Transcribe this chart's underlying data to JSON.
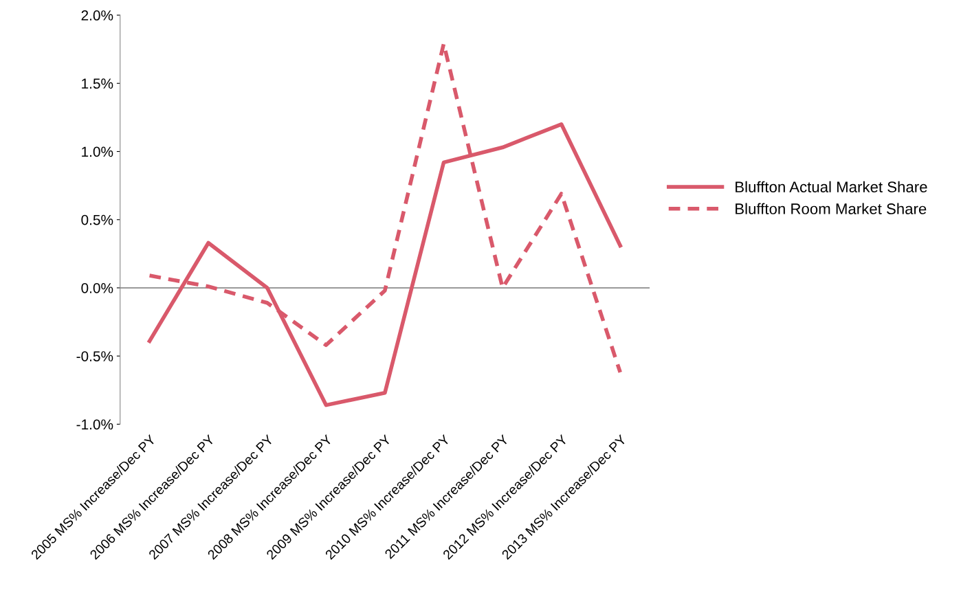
{
  "chart_data": {
    "type": "line",
    "categories": [
      "2005 MS% Increase/Dec PY",
      "2006 MS% Increase/Dec PY",
      "2007 MS% Increase/Dec PY",
      "2008 MS% Increase/Dec PY",
      "2009 MS% Increase/Dec PY",
      "2010 MS% Increase/Dec PY",
      "2011 MS% Increase/Dec PY",
      "2012 MS% Increase/Dec PY",
      "2013 MS% Increase/Dec PY"
    ],
    "series": [
      {
        "name": "Bluffton Actual Market Share",
        "color": "#d9596b",
        "line_style": "solid",
        "values": [
          -0.39,
          0.33,
          0.0,
          -0.86,
          -0.77,
          0.92,
          1.03,
          1.2,
          0.31
        ]
      },
      {
        "name": "Bluffton Room Market Share",
        "color": "#d9596b",
        "line_style": "dashed",
        "values": [
          0.09,
          0.01,
          -0.11,
          -0.42,
          -0.02,
          1.79,
          0.0,
          0.69,
          -0.62
        ]
      }
    ],
    "ylim": [
      -1.0,
      2.0
    ],
    "yticks": [
      {
        "value": -1.0,
        "label": "-1.0%"
      },
      {
        "value": -0.5,
        "label": "-0.5%"
      },
      {
        "value": 0.0,
        "label": "0.0%"
      },
      {
        "value": 0.5,
        "label": "0.5%"
      },
      {
        "value": 1.0,
        "label": "1.0%"
      },
      {
        "value": 1.5,
        "label": "1.5%"
      },
      {
        "value": 2.0,
        "label": "2.0%"
      }
    ],
    "ref_lines": [
      {
        "axis": "y",
        "value": 0,
        "color": "#999999",
        "line_style": "solid"
      }
    ],
    "grid": false,
    "legend": "right",
    "marker": "none"
  }
}
